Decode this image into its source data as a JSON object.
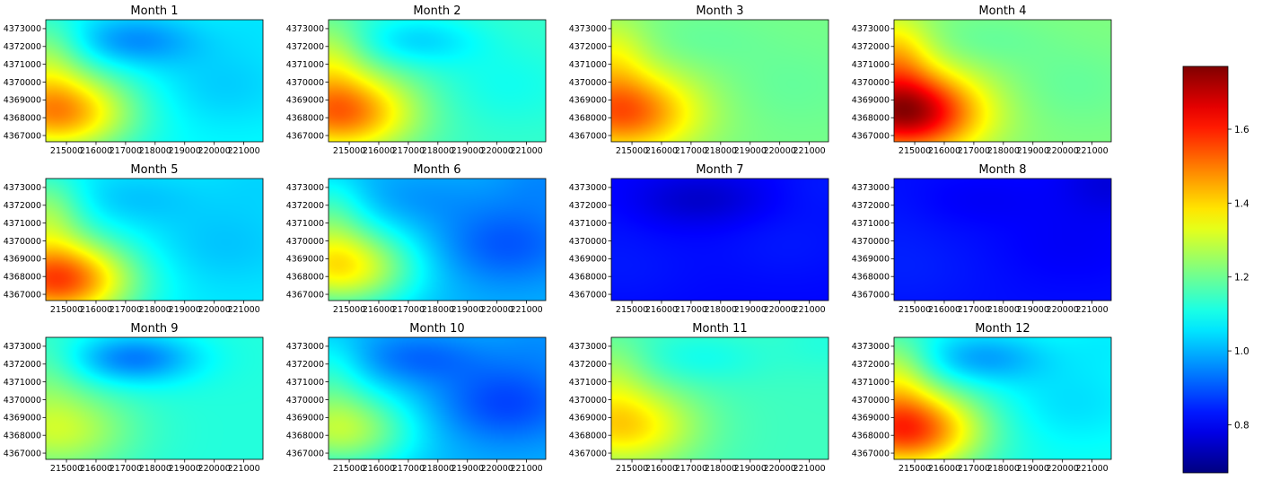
{
  "chart_data": {
    "type": "heatmap",
    "colormap": "jet",
    "grid": false,
    "vmin": 0.67,
    "vmax": 1.77,
    "x_ticks": [
      215000,
      216000,
      217000,
      218000,
      219000,
      220000,
      221000
    ],
    "y_ticks": [
      4367000,
      4368000,
      4369000,
      4370000,
      4371000,
      4372000,
      4373000
    ],
    "xlim": [
      214300,
      221650
    ],
    "ylim": [
      4366650,
      4373500
    ],
    "colorbar": {
      "ticks": [
        0.8,
        1.0,
        1.2,
        1.4,
        1.6
      ],
      "placement": "right"
    },
    "panels": [
      {
        "title": "Month 1",
        "base": 1.08,
        "west_peak": 0.4,
        "peak_y": 4368300,
        "north_dip": -0.12,
        "east_dip": -0.05,
        "far_east_dip": -0.02
      },
      {
        "title": "Month 2",
        "base": 1.14,
        "west_peak": 0.38,
        "peak_y": 4368300,
        "north_dip": -0.1,
        "east_dip": -0.04,
        "far_east_dip": 0.0
      },
      {
        "title": "Month 3",
        "base": 1.21,
        "west_peak": 0.33,
        "peak_y": 4368300,
        "north_dip": -0.02,
        "east_dip": -0.02,
        "far_east_dip": 0.0
      },
      {
        "title": "Month 4",
        "base": 1.22,
        "west_peak": 0.52,
        "peak_y": 4368300,
        "north_dip": -0.03,
        "east_dip": -0.03,
        "far_east_dip": 0.0
      },
      {
        "title": "Month 5",
        "base": 1.06,
        "west_peak": 0.5,
        "peak_y": 4367800,
        "north_dip": -0.04,
        "east_dip": -0.04,
        "far_east_dip": -0.02
      },
      {
        "title": "Month 6",
        "base": 1.0,
        "west_peak": 0.37,
        "peak_y": 4368500,
        "north_dip": -0.03,
        "east_dip": -0.1,
        "far_east_dip": -0.04
      },
      {
        "title": "Month 7",
        "base": 0.81,
        "west_peak": 0.02,
        "peak_y": 4368500,
        "north_dip": -0.06,
        "east_dip": 0.02,
        "far_east_dip": 0.02
      },
      {
        "title": "Month 8",
        "base": 0.82,
        "west_peak": 0.02,
        "peak_y": 4368500,
        "north_dip": -0.02,
        "east_dip": -0.02,
        "far_east_dip": -0.05
      },
      {
        "title": "Month 9",
        "base": 1.12,
        "west_peak": 0.18,
        "peak_y": 4368300,
        "north_dip": -0.18,
        "east_dip": 0.0,
        "far_east_dip": 0.0
      },
      {
        "title": "Month 10",
        "base": 1.0,
        "west_peak": 0.28,
        "peak_y": 4368300,
        "north_dip": -0.08,
        "east_dip": -0.12,
        "far_east_dip": -0.03
      },
      {
        "title": "Month 11",
        "base": 1.15,
        "west_peak": 0.25,
        "peak_y": 4368500,
        "north_dip": -0.05,
        "east_dip": 0.0,
        "far_east_dip": -0.03
      },
      {
        "title": "Month 12",
        "base": 1.1,
        "west_peak": 0.48,
        "peak_y": 4368300,
        "north_dip": -0.12,
        "east_dip": -0.05,
        "far_east_dip": -0.03
      }
    ]
  }
}
